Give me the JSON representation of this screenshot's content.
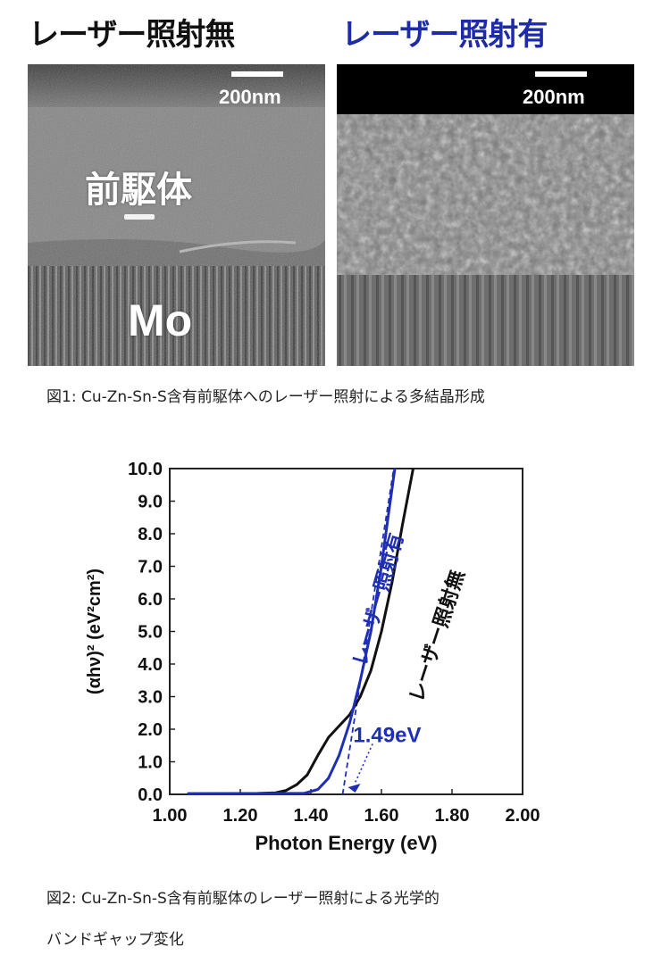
{
  "figure1": {
    "left_title": "レーザー照射無",
    "right_title": "レーザー照射有",
    "scale_label_left": "200nm",
    "scale_label_right": "200nm",
    "label_precursor": "前駆体",
    "label_mo": "Mo",
    "caption": "図1: Cu-Zn-Sn-S含有前駆体へのレーザー照射による多結晶形成"
  },
  "figure2": {
    "caption_line1": "図2: Cu-Zn-Sn-S含有前駆体のレーザー照射による光学的",
    "caption_line2": "バンドギャップ変化"
  },
  "colors": {
    "black_series": "#111111",
    "blue_series": "#1f2fb5",
    "annotation_blue": "#1f2fb5"
  },
  "chart_data": {
    "type": "line",
    "xlabel": "Photon Energy (eV)",
    "ylabel": "(αhν)² (eV²cm²)",
    "xlim": [
      1.0,
      2.0
    ],
    "ylim": [
      0.0,
      10.0
    ],
    "xticks": [
      "1.00",
      "1.20",
      "1.40",
      "1.60",
      "1.80",
      "2.00"
    ],
    "yticks": [
      "0.0",
      "1.0",
      "2.0",
      "3.0",
      "4.0",
      "5.0",
      "6.0",
      "7.0",
      "8.0",
      "9.0",
      "10.0"
    ],
    "grid": false,
    "series": [
      {
        "name": "レーザー照射無",
        "color": "#111111",
        "points": [
          [
            1.05,
            0.02
          ],
          [
            1.25,
            0.03
          ],
          [
            1.3,
            0.05
          ],
          [
            1.33,
            0.12
          ],
          [
            1.36,
            0.3
          ],
          [
            1.39,
            0.6
          ],
          [
            1.42,
            1.2
          ],
          [
            1.45,
            1.75
          ],
          [
            1.48,
            2.1
          ],
          [
            1.51,
            2.45
          ],
          [
            1.54,
            3.0
          ],
          [
            1.57,
            3.8
          ],
          [
            1.6,
            5.0
          ],
          [
            1.63,
            6.5
          ],
          [
            1.66,
            8.3
          ],
          [
            1.69,
            10.0
          ]
        ]
      },
      {
        "name": "レーザー照射有",
        "color": "#1f2fb5",
        "points": [
          [
            1.05,
            0.02
          ],
          [
            1.38,
            0.03
          ],
          [
            1.42,
            0.15
          ],
          [
            1.45,
            0.5
          ],
          [
            1.48,
            1.2
          ],
          [
            1.51,
            2.2
          ],
          [
            1.54,
            3.5
          ],
          [
            1.57,
            5.0
          ],
          [
            1.6,
            7.0
          ],
          [
            1.62,
            8.6
          ],
          [
            1.638,
            10.0
          ]
        ]
      }
    ],
    "fit_line": {
      "color": "#1f2fb5",
      "points": [
        [
          1.49,
          0.0
        ],
        [
          1.635,
          10.0
        ]
      ]
    },
    "annotation": {
      "text": "1.49eV",
      "x": 1.49,
      "y": 0.0
    }
  }
}
